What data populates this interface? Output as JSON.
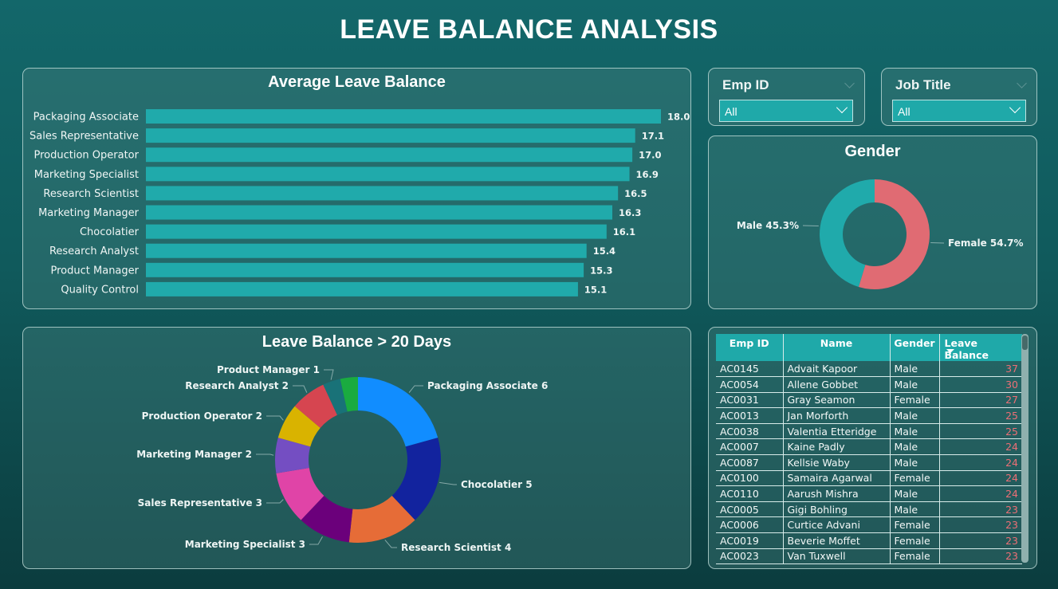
{
  "header": {
    "title": "LEAVE BALANCE ANALYSIS"
  },
  "slicers": [
    {
      "label": "Emp ID",
      "value": "All"
    },
    {
      "label": "Job Title",
      "value": "All"
    }
  ],
  "colors": {
    "bar": "#20aaab",
    "male": "#20aaab",
    "female": "#e06b73",
    "leave_value_text": "#ec6f76"
  },
  "chart_data": [
    {
      "type": "bar",
      "orientation": "horizontal",
      "title": "Average Leave Balance",
      "categories": [
        "Packaging Associate",
        "Sales Representative",
        "Production Operator",
        "Marketing Specialist",
        "Research Scientist",
        "Marketing Manager",
        "Chocolatier",
        "Research Analyst",
        "Product Manager",
        "Quality Control"
      ],
      "values": [
        18.0,
        17.1,
        17.0,
        16.9,
        16.5,
        16.3,
        16.1,
        15.4,
        15.3,
        15.1
      ],
      "value_labels": [
        "18.0",
        "17.1",
        "17.0",
        "16.9",
        "16.5",
        "16.3",
        "16.1",
        "15.4",
        "15.3",
        "15.1"
      ],
      "xlabel": "",
      "ylabel": "",
      "grid": false
    },
    {
      "type": "pie",
      "donut": true,
      "title": "Gender",
      "slices": [
        {
          "label": "Female",
          "value": 54.7,
          "display": "Female 54.7%",
          "color": "#e06b73"
        },
        {
          "label": "Male",
          "value": 45.3,
          "display": "Male 45.3%",
          "color": "#20aaab"
        }
      ]
    },
    {
      "type": "pie",
      "donut": true,
      "title": "Leave Balance > 20 Days",
      "slices": [
        {
          "label": "Packaging Associate",
          "value": 6,
          "display": "Packaging Associate 6",
          "color": "#118dff"
        },
        {
          "label": "Chocolatier",
          "value": 5,
          "display": "Chocolatier 5",
          "color": "#12239e"
        },
        {
          "label": "Research Scientist",
          "value": 4,
          "display": "Research Scientist 4",
          "color": "#e66c37"
        },
        {
          "label": "Marketing Specialist",
          "value": 3,
          "display": "Marketing Specialist 3",
          "color": "#6b007b"
        },
        {
          "label": "Sales Representative",
          "value": 3,
          "display": "Sales Representative 3",
          "color": "#e044a7"
        },
        {
          "label": "Marketing Manager",
          "value": 2,
          "display": "Marketing Manager 2",
          "color": "#744ec2"
        },
        {
          "label": "Production Operator",
          "value": 2,
          "display": "Production Operator 2",
          "color": "#d9b300"
        },
        {
          "label": "Research Analyst",
          "value": 2,
          "display": "Research Analyst 2",
          "color": "#d64550"
        },
        {
          "label": "Product Manager",
          "value": 1,
          "display": "Product Manager 1",
          "color": "#197278"
        },
        {
          "label": "",
          "value": 1,
          "display": "",
          "color": "#1aab40"
        }
      ]
    }
  ],
  "table": {
    "columns": [
      "Emp ID",
      "Name",
      "Gender",
      "Leave Balance"
    ],
    "sorted_column": "Leave Balance",
    "rows": [
      [
        "AC0145",
        "Advait Kapoor",
        "Male",
        "37"
      ],
      [
        "AC0054",
        "Allene Gobbet",
        "Male",
        "30"
      ],
      [
        "AC0031",
        "Gray Seamon",
        "Female",
        "27"
      ],
      [
        "AC0013",
        "Jan Morforth",
        "Male",
        "25"
      ],
      [
        "AC0038",
        "Valentia Etteridge",
        "Male",
        "25"
      ],
      [
        "AC0007",
        "Kaine Padly",
        "Male",
        "24"
      ],
      [
        "AC0087",
        "Kellsie Waby",
        "Male",
        "24"
      ],
      [
        "AC0100",
        "Samaira Agarwal",
        "Female",
        "24"
      ],
      [
        "AC0110",
        "Aarush Mishra",
        "Male",
        "24"
      ],
      [
        "AC0005",
        "Gigi Bohling",
        "Male",
        "23"
      ],
      [
        "AC0006",
        "Curtice Advani",
        "Female",
        "23"
      ],
      [
        "AC0019",
        "Beverie Moffet",
        "Female",
        "23"
      ],
      [
        "AC0023",
        "Van Tuxwell",
        "Female",
        "23"
      ]
    ]
  }
}
